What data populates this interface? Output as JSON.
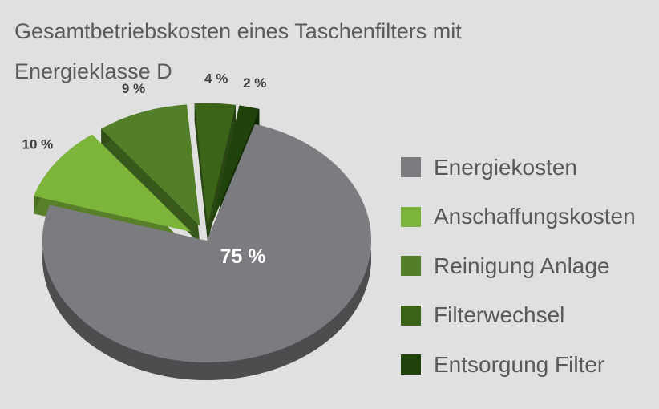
{
  "chart_data": {
    "type": "pie",
    "title": "Gesamtbetriebskosten eines Taschenfilters mit Energieklasse D",
    "legend_position": "right",
    "slices": [
      {
        "label": "Energiekosten",
        "value": 75,
        "value_label": "75 %",
        "color": "#7b7c80",
        "explode": false
      },
      {
        "label": "Anschaffungskosten",
        "value": 10,
        "value_label": "10 %",
        "color": "#7db53a",
        "explode": true
      },
      {
        "label": "Reinigung Anlage",
        "value": 9,
        "value_label": "9 %",
        "color": "#527f28",
        "explode": true
      },
      {
        "label": "Filterwechsel",
        "value": 4,
        "value_label": "4 %",
        "color": "#3c6419",
        "explode": true
      },
      {
        "label": "Entsorgung Filter",
        "value": 2,
        "value_label": "2 %",
        "color": "#1f430a",
        "explode": true
      }
    ]
  }
}
